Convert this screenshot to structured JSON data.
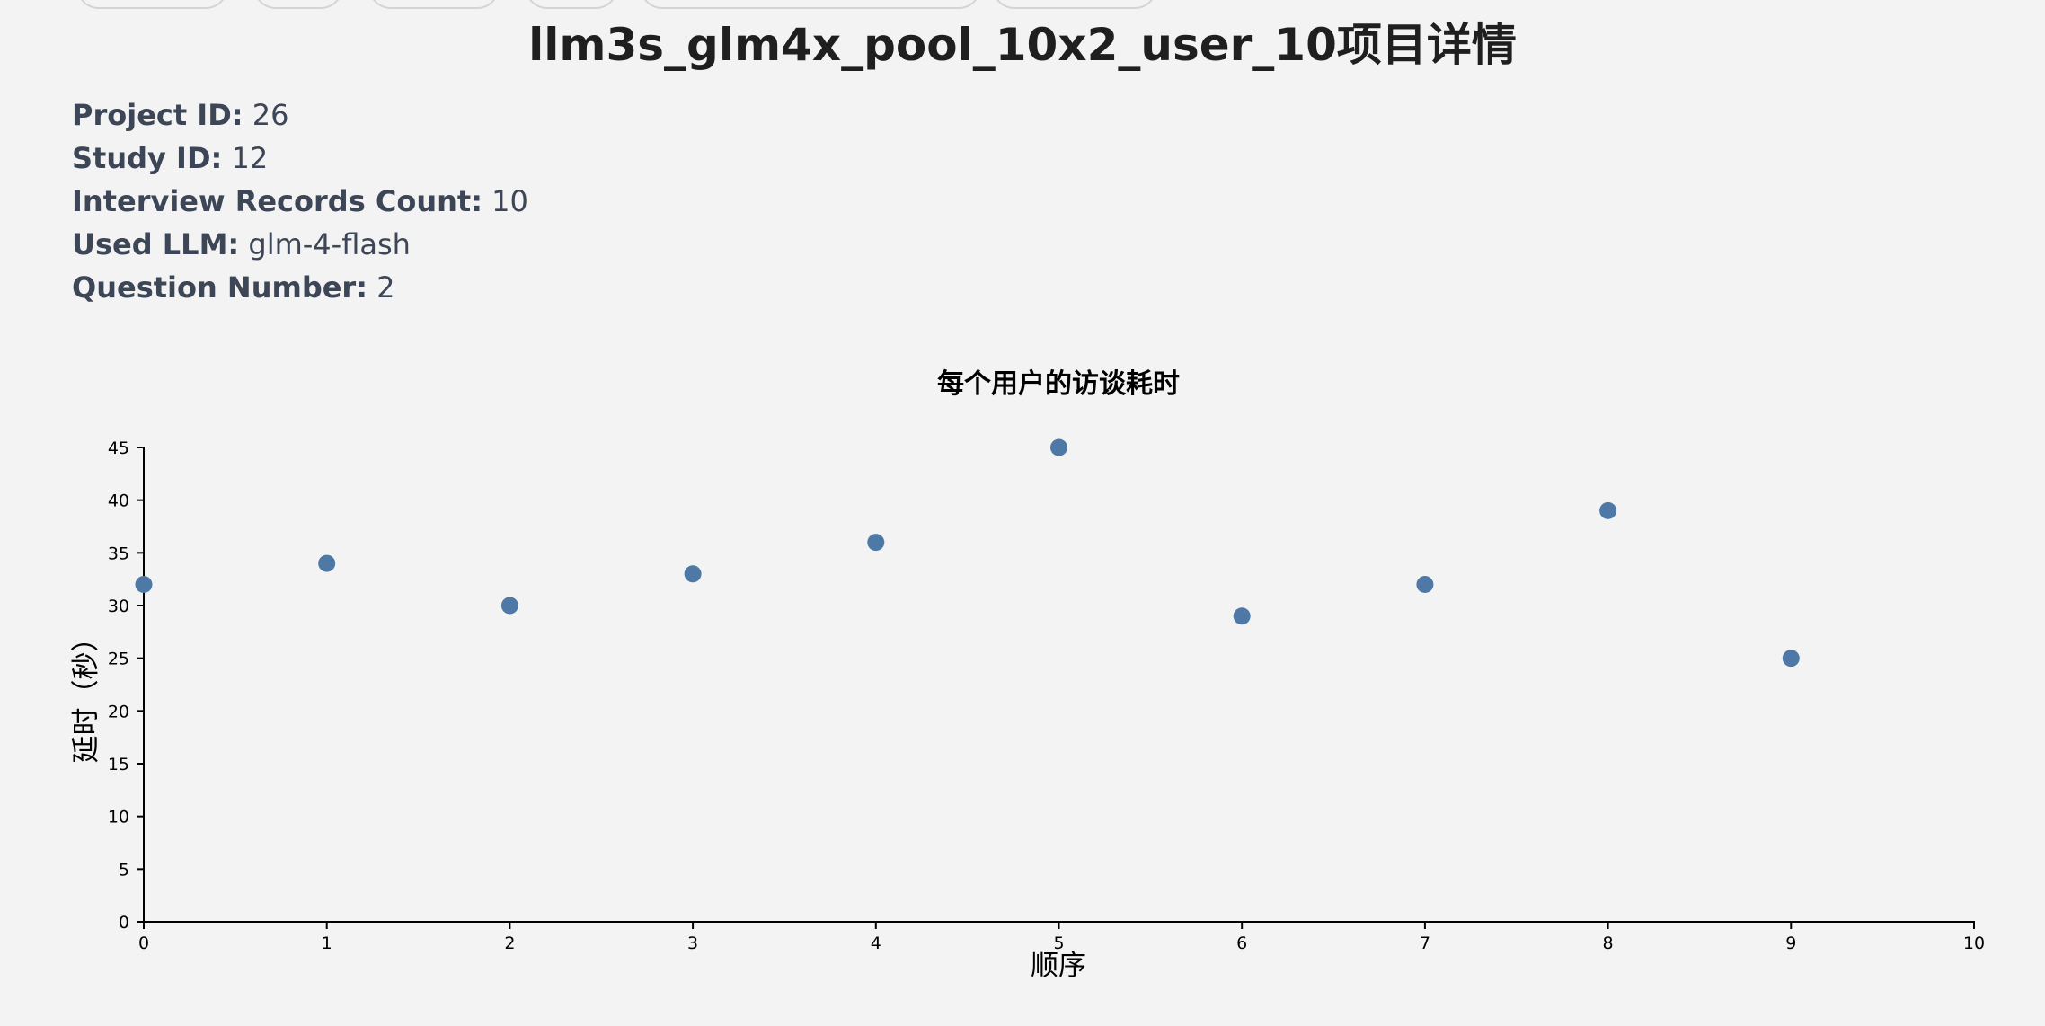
{
  "page": {
    "title": "llm3s_glm4x_pool_10x2_user_10项目详情"
  },
  "info": [
    {
      "label": "Project ID:",
      "value": "26"
    },
    {
      "label": "Study ID:",
      "value": "12"
    },
    {
      "label": "Interview Records Count:",
      "value": "10"
    },
    {
      "label": "Used LLM:",
      "value": "glm-4-flash"
    },
    {
      "label": "Question Number:",
      "value": "2"
    }
  ],
  "colors": {
    "point": "#4e79a7",
    "background": "#f3f3f3"
  },
  "chart_data": {
    "type": "scatter",
    "title": "每个用户的访谈耗时",
    "xlabel": "顺序",
    "ylabel": "延时（秒）",
    "x": [
      0,
      1,
      2,
      3,
      4,
      5,
      6,
      7,
      8,
      9
    ],
    "y": [
      32,
      34,
      30,
      33,
      36,
      45,
      29,
      32,
      39,
      25
    ],
    "xlim": [
      0,
      10
    ],
    "ylim": [
      0,
      45
    ],
    "xticks": [
      0,
      1,
      2,
      3,
      4,
      5,
      6,
      7,
      8,
      9,
      10
    ],
    "yticks": [
      0,
      5,
      10,
      15,
      20,
      25,
      30,
      35,
      40,
      45
    ],
    "grid": false,
    "legend": "none"
  }
}
